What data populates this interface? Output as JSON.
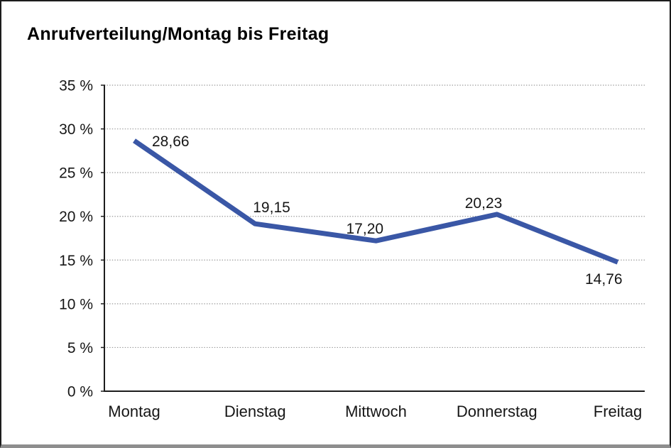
{
  "window": {
    "background": "#ffffff",
    "border_color": "#1c1c1c",
    "bottom_border_color": "#8e8e8e"
  },
  "chart_data": {
    "type": "line",
    "title": "Anrufverteilung/Montag bis Freitag",
    "categories": [
      "Montag",
      "Dienstag",
      "Mittwoch",
      "Donnerstag",
      "Freitag"
    ],
    "series": [
      {
        "name": "Anrufverteilung",
        "values": [
          28.66,
          19.15,
          17.2,
          20.23,
          14.76
        ],
        "point_labels": [
          "28,66",
          "19,15",
          "17,20",
          "20,23",
          "14,76"
        ]
      }
    ],
    "xlabel": "",
    "ylabel": "",
    "ylim": [
      0,
      35
    ],
    "y_ticks": [
      0,
      5,
      10,
      15,
      20,
      25,
      30,
      35
    ],
    "y_tick_labels": [
      "0 %",
      "5 %",
      "10 %",
      "15 %",
      "20 %",
      "25 %",
      "30 %",
      "35 %"
    ],
    "grid": "horizontal-dotted",
    "legend": "none",
    "colors": {
      "line": "#3A57A6",
      "axis": "#1c1c1c",
      "gridline": "#999999",
      "text": "#161616"
    }
  }
}
